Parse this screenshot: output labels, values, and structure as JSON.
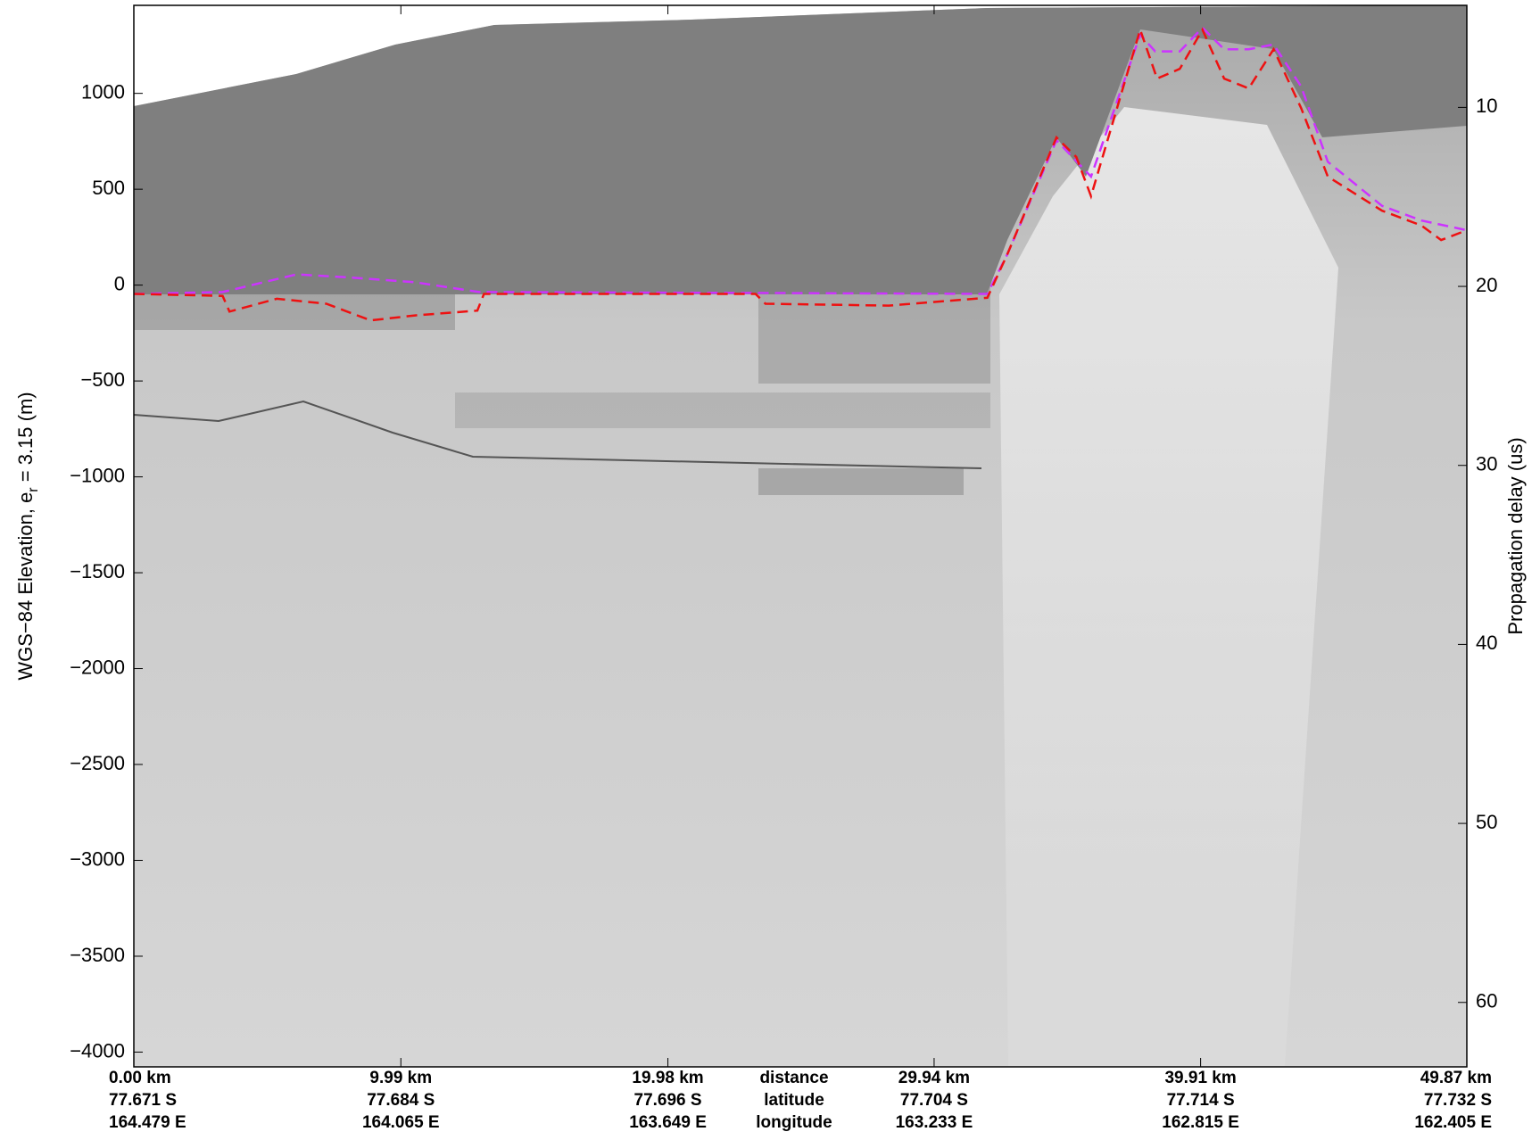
{
  "chart_data": {
    "type": "line",
    "ylabel": "WGS−84 Elevation, e",
    "ylabel_subscript": "r",
    "ylabel_suffix": " = 3.15 (m)",
    "y2label": "Propagation delay (us)",
    "xlim": [
      0,
      49.87
    ],
    "xticks": [
      {
        "value": 0,
        "label": "0.00 km"
      },
      {
        "value": 9.99,
        "label": "9.99 km"
      },
      {
        "value": 19.98,
        "label": "19.98 km"
      },
      {
        "value": 29.94,
        "label": "29.94 km"
      },
      {
        "value": 39.91,
        "label": "39.91 km"
      },
      {
        "value": 49.87,
        "label": "49.87 km"
      }
    ],
    "xtick_latitudes": [
      "77.671 S",
      "77.684 S",
      "77.696 S",
      "77.704 S",
      "77.714 S",
      "77.732 S"
    ],
    "xtick_longitudes": [
      "164.479 E",
      "164.065 E",
      "163.649 E",
      "163.233 E",
      "162.815 E",
      "162.405 E"
    ],
    "x_row_labels": [
      "distance",
      "latitude",
      "longitude"
    ],
    "ylim": [
      -4077,
      1459
    ],
    "yticks": [
      1000,
      500,
      0,
      {
        "value": -500,
        "label": "−500"
      },
      {
        "value": -1000,
        "label": "−1000"
      },
      {
        "value": -1500,
        "label": "−1500"
      },
      {
        "value": -2000,
        "label": "−2000"
      },
      {
        "value": -2500,
        "label": "−2500"
      },
      {
        "value": -3000,
        "label": "−3000"
      },
      {
        "value": -3500,
        "label": "−3500"
      },
      {
        "value": -4000,
        "label": "−4000"
      }
    ],
    "y2lim": [
      63.6,
      4.3
    ],
    "y2ticks": [
      10,
      20,
      30,
      40,
      50,
      60
    ],
    "series": [
      {
        "color": "#cc33ff",
        "x": [
          0,
          3.32,
          6.09,
          7.94,
          10.52,
          12.92,
          23.26,
          31.93,
          32.67,
          34.52,
          35.81,
          37.65,
          38.21,
          39.13,
          39.98,
          40.79,
          41.71,
          42.64,
          43.67,
          44.67,
          46.7,
          48.17,
          49.87
        ],
        "values": [
          -46,
          -36,
          56,
          41,
          15,
          -36,
          -41,
          -46,
          158,
          755,
          566,
          1306,
          1219,
          1219,
          1342,
          1230,
          1230,
          1255,
          1036,
          643,
          413,
          337,
          286
        ]
      },
      {
        "color": "#ee1111",
        "x": [
          0,
          3.32,
          3.58,
          5.35,
          7.2,
          8.86,
          10.52,
          12.85,
          13.1,
          23.26,
          23.63,
          28.24,
          31.93,
          32.67,
          34.52,
          35.26,
          35.81,
          37.65,
          38.28,
          39.13,
          39.98,
          40.79,
          41.71,
          42.64,
          43.67,
          44.67,
          46.7,
          48.17,
          48.91,
          49.87
        ],
        "values": [
          -46,
          -56,
          -138,
          -71,
          -97,
          -184,
          -158,
          -133,
          -46,
          -46,
          -97,
          -107,
          -66,
          158,
          770,
          668,
          464,
          1332,
          1077,
          1128,
          1332,
          1077,
          1026,
          1230,
          923,
          566,
          388,
          311,
          235,
          286
        ]
      }
    ]
  }
}
